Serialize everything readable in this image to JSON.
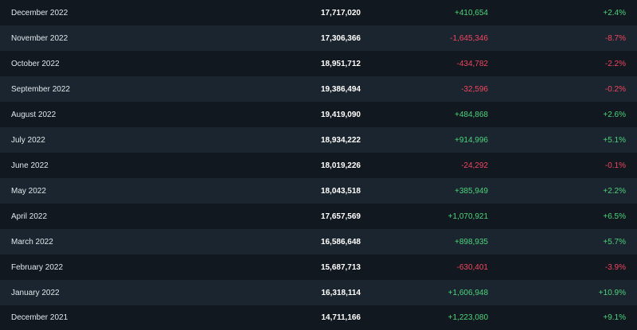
{
  "rows": [
    {
      "month": "December 2022",
      "total": "17,717,020",
      "change": "+410,654",
      "pct": "+2.4%",
      "dir": "pos"
    },
    {
      "month": "November 2022",
      "total": "17,306,366",
      "change": "-1,645,346",
      "pct": "-8.7%",
      "dir": "neg"
    },
    {
      "month": "October 2022",
      "total": "18,951,712",
      "change": "-434,782",
      "pct": "-2.2%",
      "dir": "neg"
    },
    {
      "month": "September 2022",
      "total": "19,386,494",
      "change": "-32,596",
      "pct": "-0.2%",
      "dir": "neg"
    },
    {
      "month": "August 2022",
      "total": "19,419,090",
      "change": "+484,868",
      "pct": "+2.6%",
      "dir": "pos"
    },
    {
      "month": "July 2022",
      "total": "18,934,222",
      "change": "+914,996",
      "pct": "+5.1%",
      "dir": "pos"
    },
    {
      "month": "June 2022",
      "total": "18,019,226",
      "change": "-24,292",
      "pct": "-0.1%",
      "dir": "neg"
    },
    {
      "month": "May 2022",
      "total": "18,043,518",
      "change": "+385,949",
      "pct": "+2.2%",
      "dir": "pos"
    },
    {
      "month": "April 2022",
      "total": "17,657,569",
      "change": "+1,070,921",
      "pct": "+6.5%",
      "dir": "pos"
    },
    {
      "month": "March 2022",
      "total": "16,586,648",
      "change": "+898,935",
      "pct": "+5.7%",
      "dir": "pos"
    },
    {
      "month": "February 2022",
      "total": "15,687,713",
      "change": "-630,401",
      "pct": "-3.9%",
      "dir": "neg"
    },
    {
      "month": "January 2022",
      "total": "16,318,114",
      "change": "+1,606,948",
      "pct": "+10.9%",
      "dir": "pos"
    },
    {
      "month": "December 2021",
      "total": "14,711,166",
      "change": "+1,223,080",
      "pct": "+9.1%",
      "dir": "pos"
    }
  ],
  "colors": {
    "background": "#111820",
    "row_alt": "#1b252f",
    "positive": "#4bd37b",
    "negative": "#f0455f",
    "total_text": "#ffffff",
    "month_text": "#dfe6ec"
  }
}
